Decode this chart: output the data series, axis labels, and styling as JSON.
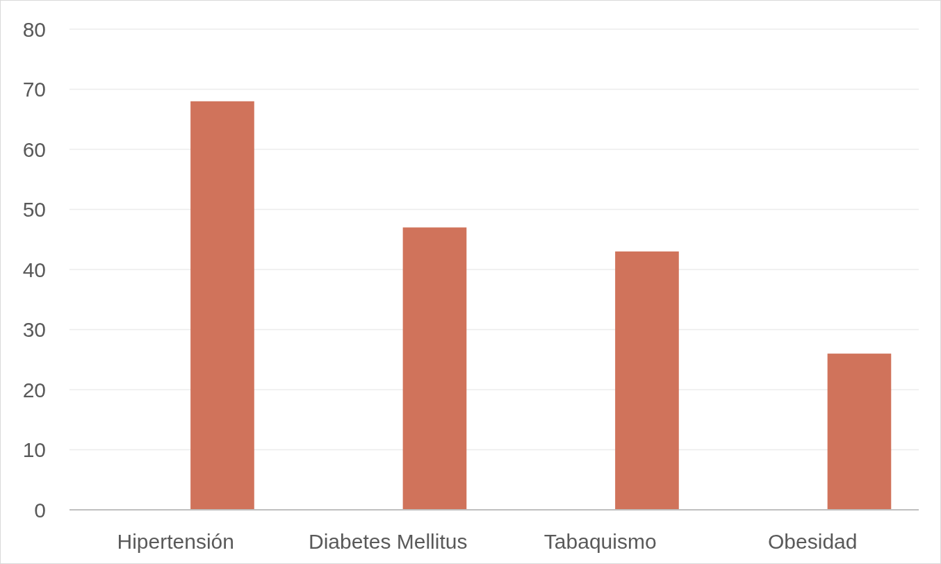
{
  "chart_data": {
    "type": "bar",
    "categories": [
      "Hipertensión",
      "Diabetes Mellitus",
      "Tabaquismo",
      "Obesidad"
    ],
    "values": [
      68,
      47,
      43,
      26
    ],
    "color": "#d0735b",
    "ylim": [
      0,
      80
    ],
    "yticks": [
      0,
      10,
      20,
      30,
      40,
      50,
      60,
      70,
      80
    ],
    "grid": "y"
  }
}
